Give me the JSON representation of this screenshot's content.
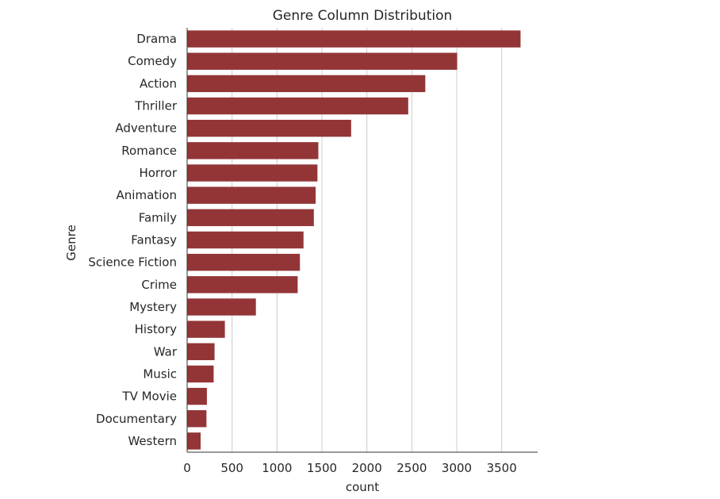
{
  "chart_data": {
    "type": "bar",
    "orientation": "horizontal",
    "title": "Genre Column Distribution",
    "xlabel": "count",
    "ylabel": "Genre",
    "categories": [
      "Drama",
      "Comedy",
      "Action",
      "Thriller",
      "Adventure",
      "Romance",
      "Horror",
      "Animation",
      "Family",
      "Fantasy",
      "Science Fiction",
      "Crime",
      "Mystery",
      "History",
      "War",
      "Music",
      "TV Movie",
      "Documentary",
      "Western"
    ],
    "values": [
      3710,
      3005,
      2650,
      2460,
      1825,
      1460,
      1450,
      1430,
      1410,
      1295,
      1255,
      1230,
      765,
      420,
      305,
      295,
      220,
      215,
      150
    ],
    "xlim": [
      0,
      3900
    ],
    "xticks": [
      0,
      500,
      1000,
      1500,
      2000,
      2500,
      3000,
      3500
    ],
    "grid": "vertical",
    "bar_color": "#933537",
    "grid_color": "#cccccc",
    "axis_color": "#333333"
  }
}
